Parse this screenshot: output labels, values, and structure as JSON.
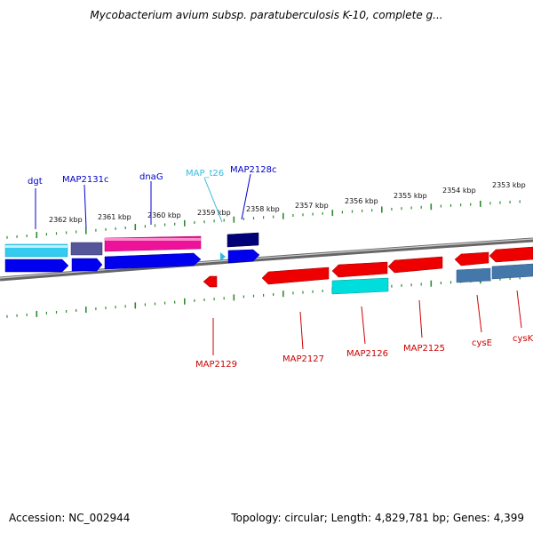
{
  "title": "Mycobacterium avium subsp. paratuberculosis K-10, complete g...",
  "footer": {
    "accession": "Accession: NC_002944",
    "summary": "Topology: circular; Length: 4,829,781 bp; Genes: 4,399"
  },
  "colors": {
    "backbone": "#777777",
    "tick": "#2e8b2e",
    "forward_label": "#0000cc",
    "reverse_label": "#cc0000",
    "trna_label": "#33bbdd"
  },
  "kbp_labels": [
    "2362 kbp",
    "2361 kbp",
    "2360 kbp",
    "2359 kbp",
    "2358 kbp",
    "2357 kbp",
    "2356 kbp",
    "2355 kbp",
    "2354 kbp",
    "2353 kbp"
  ],
  "genes_top": [
    {
      "label": "dgt",
      "color": "#0000cc"
    },
    {
      "label": "MAP2131c",
      "color": "#0000cc"
    },
    {
      "label": "dnaG",
      "color": "#0000cc"
    },
    {
      "label": "MAP_t26",
      "color": "#33bbdd"
    },
    {
      "label": "MAP2128c",
      "color": "#0000cc"
    }
  ],
  "genes_bottom": [
    {
      "label": "MAP2129",
      "color": "#cc0000"
    },
    {
      "label": "MAP2127",
      "color": "#cc0000"
    },
    {
      "label": "MAP2126",
      "color": "#cc0000"
    },
    {
      "label": "MAP2125",
      "color": "#cc0000"
    },
    {
      "label": "cysE",
      "color": "#cc0000"
    },
    {
      "label": "cysK",
      "color": "#cc0000"
    }
  ]
}
